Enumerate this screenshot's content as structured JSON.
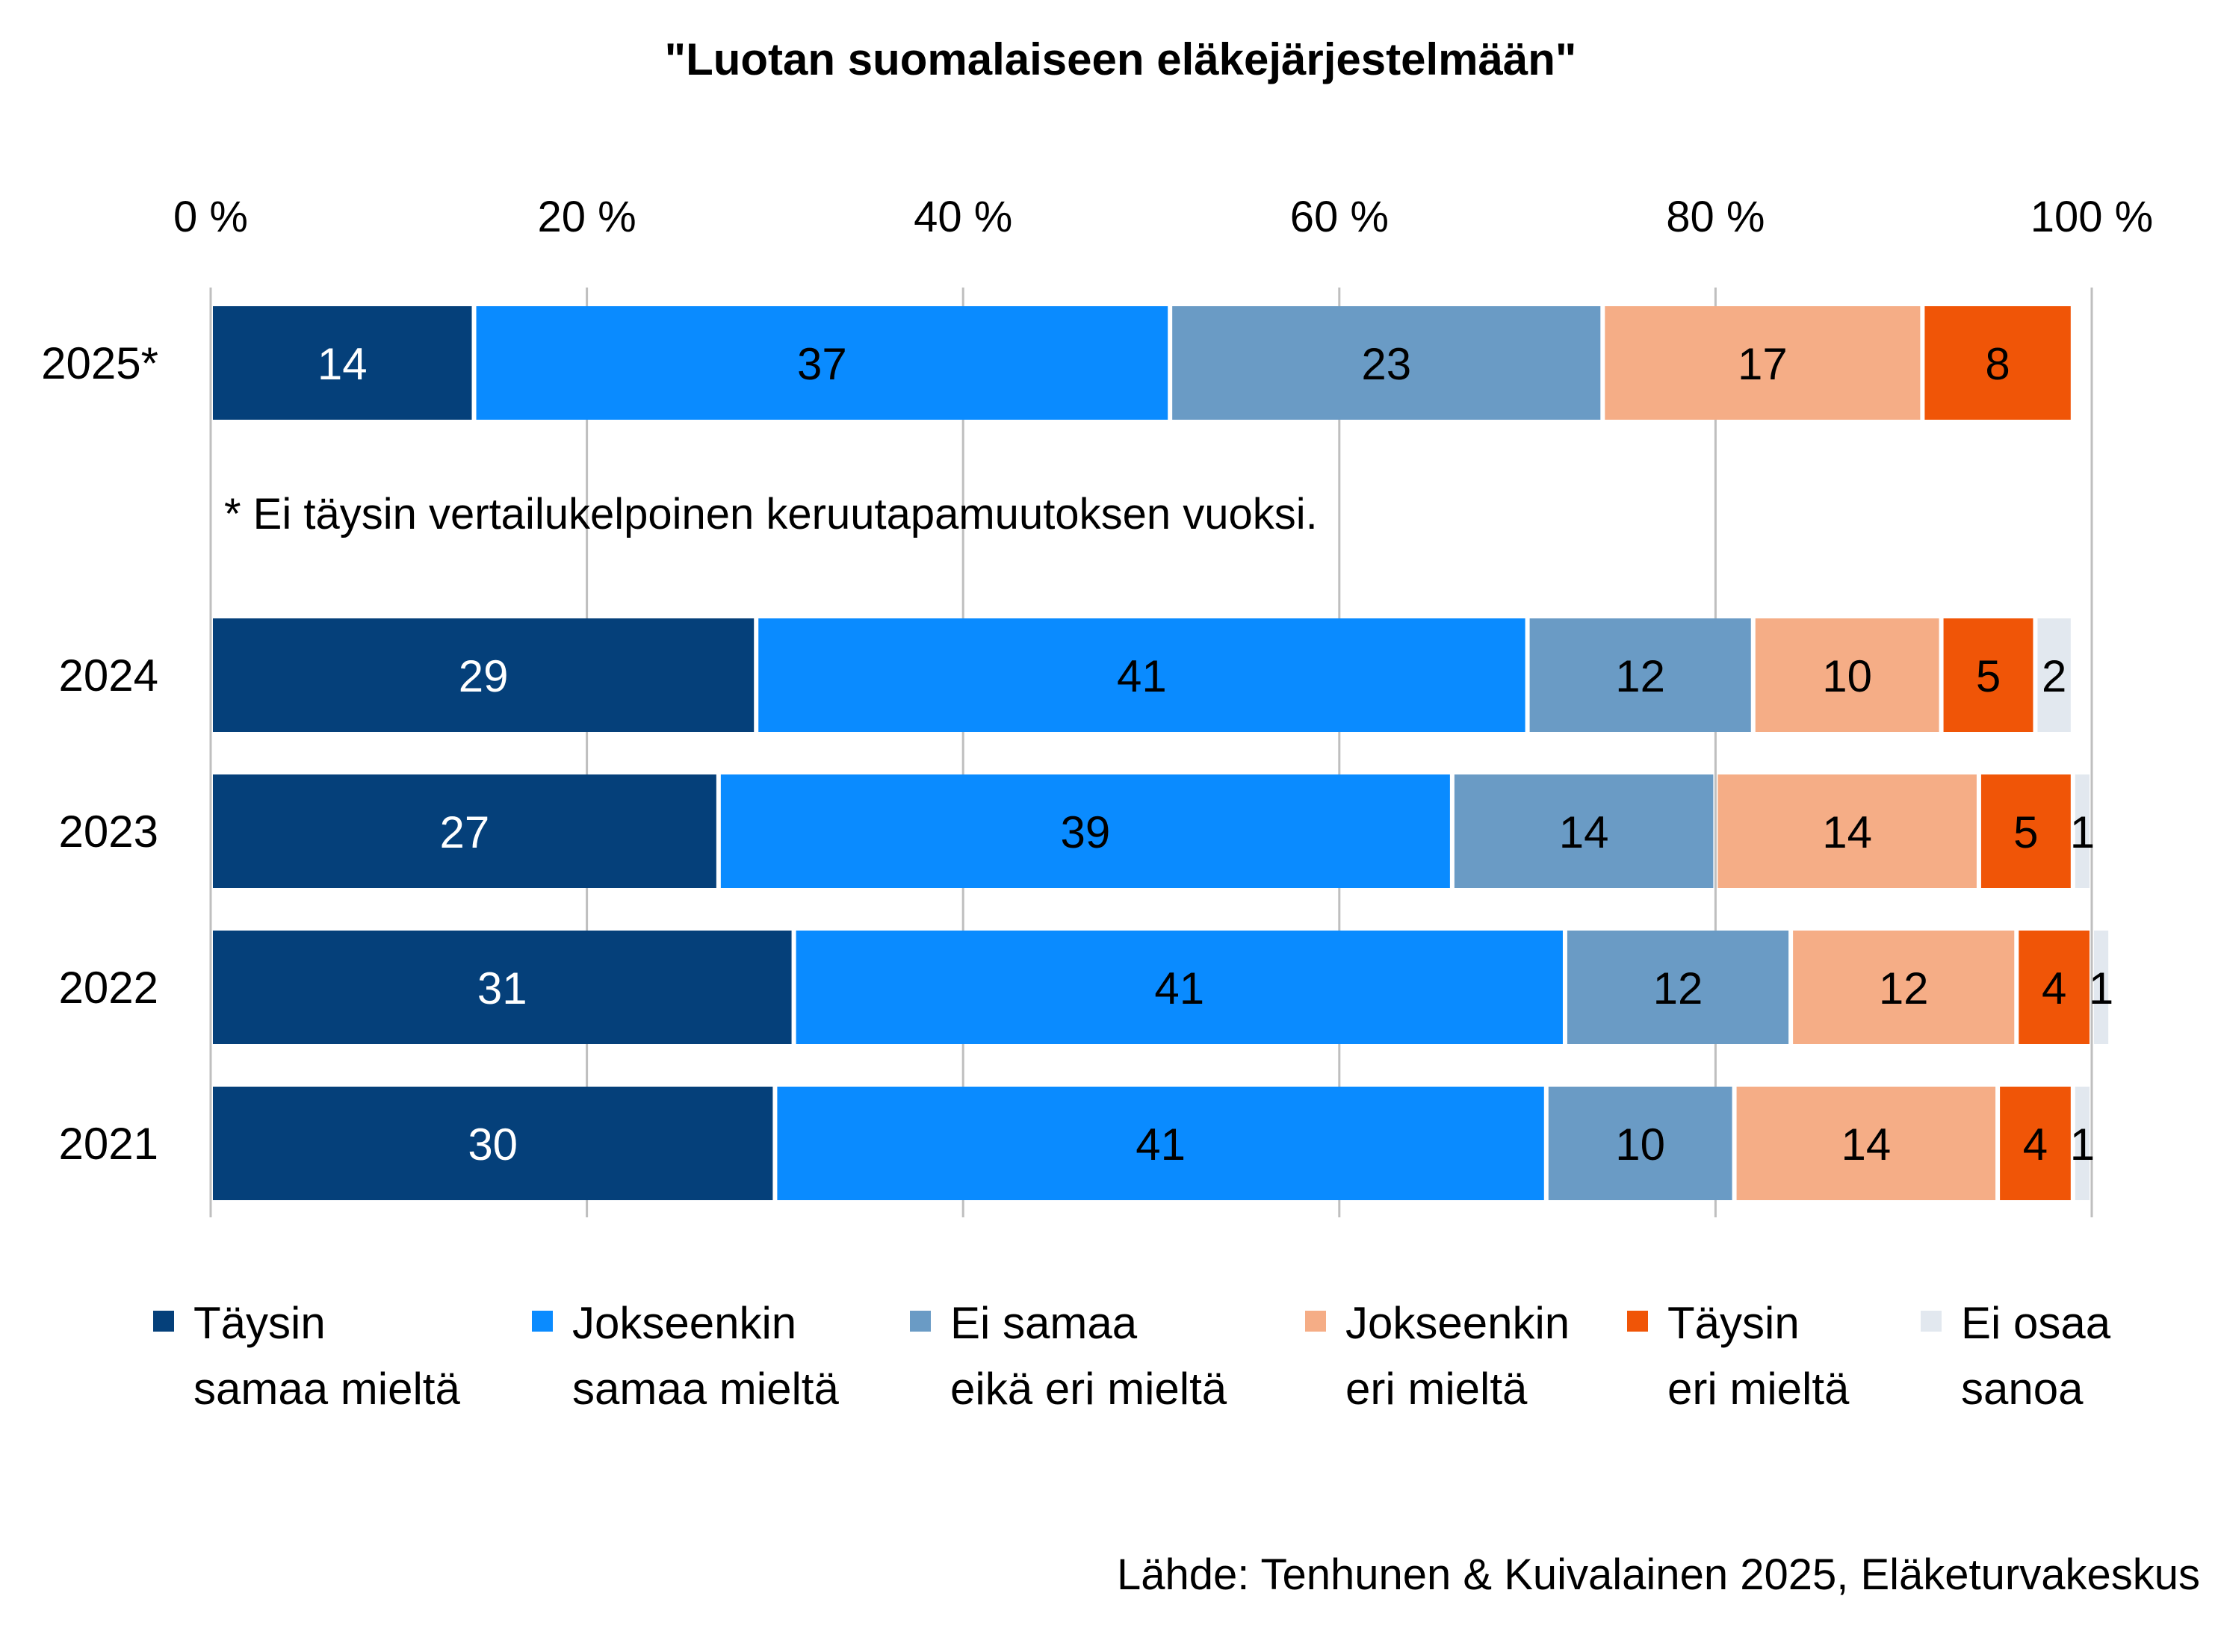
{
  "chart_data": {
    "type": "bar",
    "orientation": "horizontal",
    "stacked": true,
    "percent_stacked": true,
    "title": "\"Luotan suomalaiseen eläkejärjestelmään\"",
    "x_ticks": [
      "0 %",
      "20 %",
      "40 %",
      "60 %",
      "80 %",
      "100 %"
    ],
    "xlim": [
      0,
      100
    ],
    "grid": true,
    "legend_position": "bottom",
    "footnote": "* Ei täysin vertailukelpoinen keruutapamuutoksen vuoksi.",
    "source": "Lähde: Tenhunen & Kuivalainen 2025, Eläketurvakeskus",
    "categories": [
      "2025*",
      "2024",
      "2023",
      "2022",
      "2021"
    ],
    "series": [
      {
        "name": "Täysin samaa mieltä",
        "legend_lines": [
          "Täysin",
          "samaa mieltä"
        ],
        "color": "#05407A",
        "label_color": "#ffffff",
        "values": [
          14,
          29,
          27,
          31,
          30
        ]
      },
      {
        "name": "Jokseenkin samaa mieltä",
        "legend_lines": [
          "Jokseenkin",
          "samaa mieltä"
        ],
        "color": "#0A8BFF",
        "label_color": "#000000",
        "values": [
          37,
          41,
          39,
          41,
          41
        ]
      },
      {
        "name": "Ei samaa eikä eri mieltä",
        "legend_lines": [
          "Ei samaa",
          "eikä eri mieltä"
        ],
        "color": "#6A9BC5",
        "label_color": "#000000",
        "values": [
          23,
          12,
          14,
          12,
          10
        ]
      },
      {
        "name": "Jokseenkin eri mieltä",
        "legend_lines": [
          "Jokseenkin",
          "eri mieltä"
        ],
        "color": "#F5AD86",
        "label_color": "#000000",
        "values": [
          17,
          10,
          14,
          12,
          14
        ]
      },
      {
        "name": "Täysin eri mieltä",
        "legend_lines": [
          "Täysin",
          "eri mieltä"
        ],
        "color": "#F05507",
        "label_color": "#000000",
        "values": [
          8,
          5,
          5,
          4,
          4
        ]
      },
      {
        "name": "Ei osaa sanoa",
        "legend_lines": [
          "Ei osaa",
          "sanoa"
        ],
        "color": "#E2E8EF",
        "label_color": "#000000",
        "values": [
          null,
          2,
          1,
          1,
          1
        ]
      }
    ]
  }
}
